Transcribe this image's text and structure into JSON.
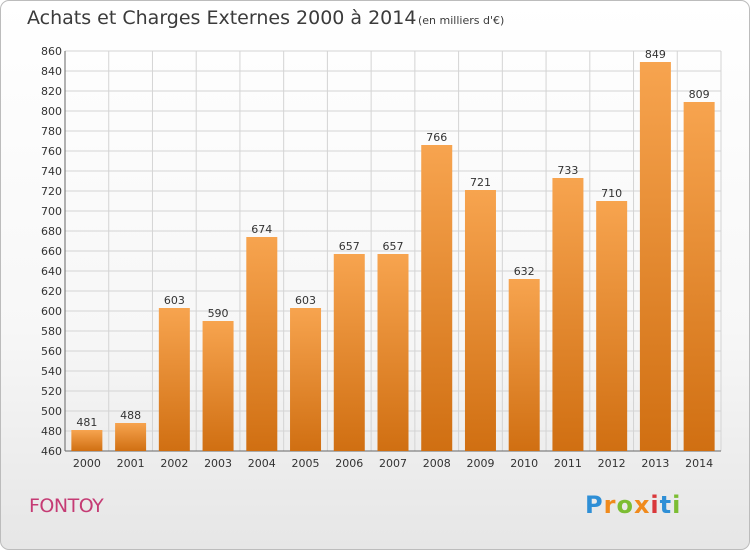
{
  "chart_data": {
    "type": "bar",
    "title": "Achats et Charges Externes 2000 à 2014",
    "subtitle": "(en milliers d'€)",
    "categories": [
      "2000",
      "2001",
      "2002",
      "2003",
      "2004",
      "2005",
      "2006",
      "2007",
      "2008",
      "2009",
      "2010",
      "2011",
      "2012",
      "2013",
      "2014"
    ],
    "values": [
      481,
      488,
      603,
      590,
      674,
      603,
      657,
      657,
      766,
      721,
      632,
      733,
      710,
      849,
      809
    ],
    "ylim": [
      460,
      860
    ],
    "yticks": [
      460,
      480,
      500,
      520,
      540,
      560,
      580,
      600,
      620,
      640,
      660,
      680,
      700,
      720,
      740,
      760,
      780,
      800,
      820,
      840,
      860
    ],
    "grid": true,
    "bar_color_top": "#f7a44f",
    "bar_color_bottom": "#d06f12"
  },
  "place_name": "FONTOY",
  "logo": {
    "letters": [
      "P",
      "r",
      "o",
      "x",
      "i",
      "t",
      "i"
    ],
    "colors": [
      "#2f8fd6",
      "#f08a1c",
      "#7cbd33",
      "#f08a1c",
      "#d9383b",
      "#2f8fd6",
      "#7cbd33"
    ]
  }
}
